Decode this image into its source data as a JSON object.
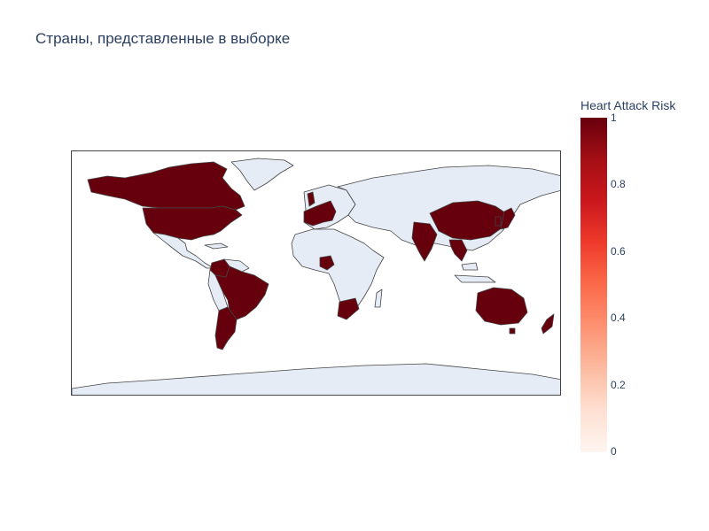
{
  "title": "Страны, представленные в выборке",
  "colorbar": {
    "title": "Heart Attack Risk",
    "ticks": [
      "1",
      "0.8",
      "0.6",
      "0.4",
      "0.2",
      "0"
    ],
    "range": [
      0,
      1
    ],
    "colorscale": [
      "#fff5f0",
      "#fee0d2",
      "#fcbba1",
      "#fc9272",
      "#fb6a4a",
      "#ef3b2c",
      "#cb181d",
      "#a50f15",
      "#67000d"
    ]
  },
  "map": {
    "land_color": "#e5ecf6",
    "coast_color": "#444444",
    "highlighted_color": "#67000d",
    "countries_in_sample": [
      "Canada",
      "United States",
      "Colombia",
      "Brazil",
      "Argentina",
      "United Kingdom",
      "France",
      "Germany",
      "Italy",
      "Spain",
      "Nigeria",
      "South Africa",
      "India",
      "China",
      "Thailand",
      "Vietnam",
      "South Korea",
      "Japan",
      "Australia",
      "New Zealand"
    ]
  }
}
